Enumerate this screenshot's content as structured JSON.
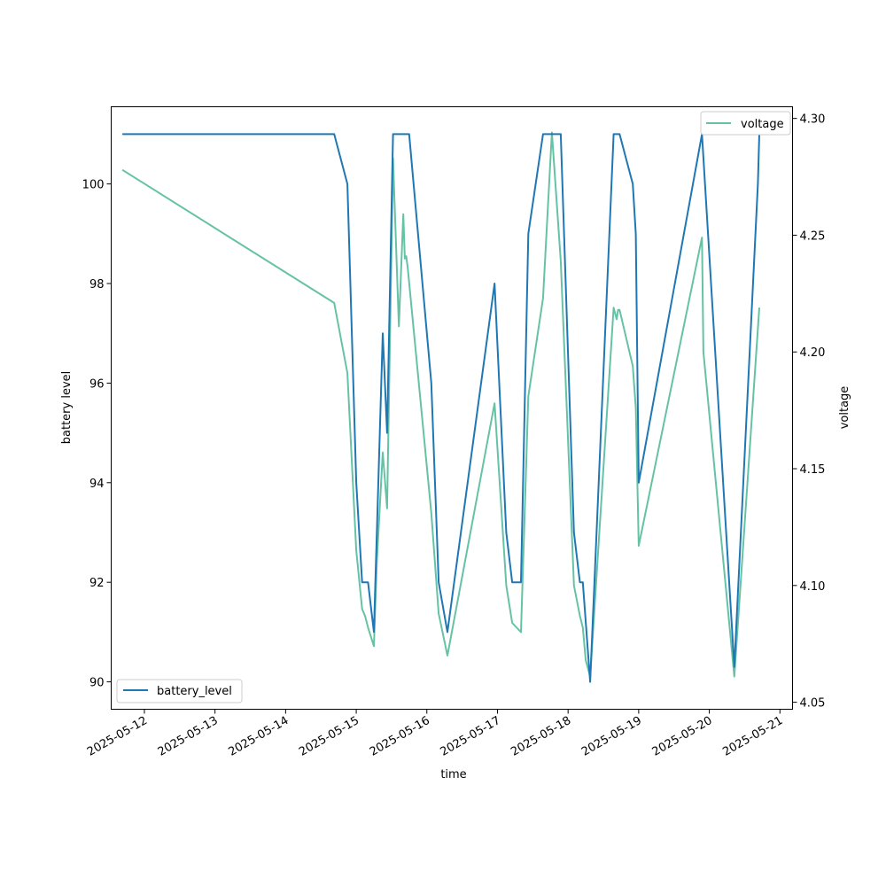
{
  "chart_data": {
    "type": "line",
    "xlabel": "time",
    "ylabel_left": "battery level",
    "ylabel_right": "voltage",
    "x_ticks": [
      "2025-05-12",
      "2025-05-13",
      "2025-05-14",
      "2025-05-15",
      "2025-05-16",
      "2025-05-17",
      "2025-05-18",
      "2025-05-19",
      "2025-05-20",
      "2025-05-21"
    ],
    "x_range": [
      "2025-05-11 12:43",
      "2025-05-21 04:17"
    ],
    "y_left_ticks": [
      90,
      92,
      94,
      96,
      98,
      100
    ],
    "y_left_range": [
      89.45,
      101.55
    ],
    "y_right_ticks": [
      4.05,
      4.1,
      4.15,
      4.2,
      4.25,
      4.3
    ],
    "y_right_range": [
      4.047,
      4.305
    ],
    "legend_left": {
      "label": "battery_level",
      "position": "lower-left"
    },
    "legend_right": {
      "label": "voltage",
      "position": "upper-right"
    },
    "colors": {
      "battery_level": "#1f77b4",
      "voltage": "#66c2a5"
    },
    "grid": false,
    "series": [
      {
        "name": "battery_level",
        "axis": "left",
        "points": [
          [
            "2025-05-11 16:30",
            101
          ],
          [
            "2025-05-14 16:30",
            101
          ],
          [
            "2025-05-14 21:00",
            100
          ],
          [
            "2025-05-15 00:00",
            94
          ],
          [
            "2025-05-15 02:00",
            92
          ],
          [
            "2025-05-15 04:00",
            92
          ],
          [
            "2025-05-15 06:00",
            91
          ],
          [
            "2025-05-15 09:00",
            97
          ],
          [
            "2025-05-15 10:30",
            95
          ],
          [
            "2025-05-15 12:30",
            101
          ],
          [
            "2025-05-15 18:00",
            101
          ],
          [
            "2025-05-16 01:30",
            96
          ],
          [
            "2025-05-16 04:00",
            92
          ],
          [
            "2025-05-16 07:00",
            91
          ],
          [
            "2025-05-16 23:00",
            98
          ],
          [
            "2025-05-17 03:00",
            93
          ],
          [
            "2025-05-17 05:00",
            92
          ],
          [
            "2025-05-17 08:00",
            92
          ],
          [
            "2025-05-17 10:30",
            99
          ],
          [
            "2025-05-17 15:30",
            101
          ],
          [
            "2025-05-17 18:30",
            101
          ],
          [
            "2025-05-17 21:30",
            101
          ],
          [
            "2025-05-18 02:00",
            93
          ],
          [
            "2025-05-18 04:00",
            92
          ],
          [
            "2025-05-18 05:00",
            92
          ],
          [
            "2025-05-18 07:30",
            90
          ],
          [
            "2025-05-18 15:30",
            101
          ],
          [
            "2025-05-18 17:30",
            101
          ],
          [
            "2025-05-18 22:00",
            100
          ],
          [
            "2025-05-18 23:00",
            99
          ],
          [
            "2025-05-19 00:00",
            94
          ],
          [
            "2025-05-19 21:30",
            101
          ],
          [
            "2025-05-20 08:30",
            90.3
          ],
          [
            "2025-05-20 16:30",
            100
          ],
          [
            "2025-05-20 17:00",
            101
          ]
        ]
      },
      {
        "name": "voltage",
        "axis": "right",
        "points": [
          [
            "2025-05-11 16:30",
            4.278
          ],
          [
            "2025-05-14 16:30",
            4.221
          ],
          [
            "2025-05-14 21:00",
            4.191
          ],
          [
            "2025-05-15 00:00",
            4.115
          ],
          [
            "2025-05-15 02:00",
            4.09
          ],
          [
            "2025-05-15 03:00",
            4.087
          ],
          [
            "2025-05-15 04:00",
            4.082
          ],
          [
            "2025-05-15 06:00",
            4.074
          ],
          [
            "2025-05-15 07:00",
            4.11
          ],
          [
            "2025-05-15 09:00",
            4.157
          ],
          [
            "2025-05-15 10:30",
            4.133
          ],
          [
            "2025-05-15 12:30",
            4.283
          ],
          [
            "2025-05-15 14:30",
            4.211
          ],
          [
            "2025-05-15 16:00",
            4.259
          ],
          [
            "2025-05-15 16:30",
            4.24
          ],
          [
            "2025-05-15 17:00",
            4.241
          ],
          [
            "2025-05-15 17:30",
            4.236
          ],
          [
            "2025-05-16 01:30",
            4.131
          ],
          [
            "2025-05-16 04:00",
            4.088
          ],
          [
            "2025-05-16 07:00",
            4.07
          ],
          [
            "2025-05-16 23:00",
            4.178
          ],
          [
            "2025-05-17 03:00",
            4.1
          ],
          [
            "2025-05-17 05:00",
            4.084
          ],
          [
            "2025-05-17 08:00",
            4.08
          ],
          [
            "2025-05-17 10:30",
            4.181
          ],
          [
            "2025-05-17 15:30",
            4.223
          ],
          [
            "2025-05-17 18:30",
            4.294
          ],
          [
            "2025-05-17 21:30",
            4.239
          ],
          [
            "2025-05-18 02:00",
            4.1
          ],
          [
            "2025-05-18 04:00",
            4.087
          ],
          [
            "2025-05-18 05:00",
            4.082
          ],
          [
            "2025-05-18 06:00",
            4.068
          ],
          [
            "2025-05-18 07:30",
            4.061
          ],
          [
            "2025-05-18 15:30",
            4.219
          ],
          [
            "2025-05-18 16:30",
            4.214
          ],
          [
            "2025-05-18 17:00",
            4.218
          ],
          [
            "2025-05-18 17:30",
            4.218
          ],
          [
            "2025-05-18 22:00",
            4.194
          ],
          [
            "2025-05-18 23:00",
            4.176
          ],
          [
            "2025-05-19 00:00",
            4.117
          ],
          [
            "2025-05-19 21:30",
            4.249
          ],
          [
            "2025-05-19 22:00",
            4.2
          ],
          [
            "2025-05-20 08:30",
            4.061
          ],
          [
            "2025-05-20 17:00",
            4.219
          ]
        ]
      }
    ]
  }
}
